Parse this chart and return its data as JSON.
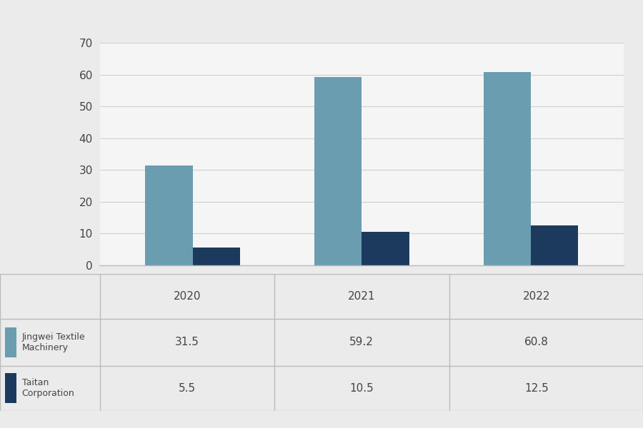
{
  "years": [
    "2020",
    "2021",
    "2022"
  ],
  "jingwei_values": [
    31.5,
    59.2,
    60.8
  ],
  "taitan_values": [
    5.5,
    10.5,
    12.5
  ],
  "jingwei_color": "#6a9db0",
  "taitan_color": "#1c3a5e",
  "background_color": "#ebebeb",
  "chart_bg": "#f5f5f5",
  "ylim": [
    0,
    70
  ],
  "yticks": [
    0,
    10,
    20,
    30,
    40,
    50,
    60,
    70
  ],
  "bar_width": 0.28,
  "legend_jingwei": "Jingwei Textile\nMachinery",
  "legend_taitan": "Taitan\nCorporation",
  "grid_color": "#d0d0d0",
  "table_line_color": "#bbbbbb",
  "text_color": "#444444"
}
